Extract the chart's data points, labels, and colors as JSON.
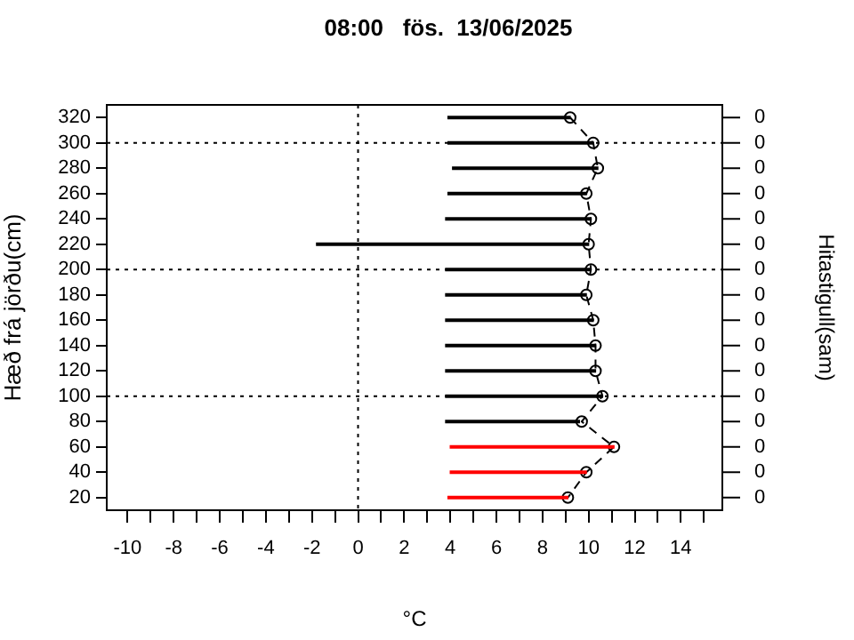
{
  "chart_data": {
    "type": "bar",
    "orientation": "horizontal",
    "title": "08:00   fös.  13/06/2025",
    "xlabel": "°C",
    "ylabel": "Hæð frá jörðu(cm)",
    "y2label": "Hitastigull(sam)",
    "categories": [
      "320",
      "300",
      "280",
      "260",
      "240",
      "220",
      "200",
      "180",
      "160",
      "140",
      "120",
      "100",
      "80",
      "60",
      "40",
      "20"
    ],
    "series": [
      {
        "base": [
          3.9,
          3.9,
          4.1,
          3.9,
          3.8,
          -1.8,
          3.8,
          3.8,
          3.8,
          3.8,
          3.8,
          3.8,
          3.8,
          4.0,
          4.0,
          3.9
        ],
        "values": [
          5.3,
          6.3,
          6.3,
          6.0,
          6.3,
          11.8,
          6.3,
          6.1,
          6.4,
          6.5,
          6.5,
          6.8,
          5.8,
          7.1,
          5.9,
          5.2
        ],
        "colors": [
          "#000000",
          "#000000",
          "#000000",
          "#000000",
          "#000000",
          "#000000",
          "#000000",
          "#000000",
          "#000000",
          "#000000",
          "#000000",
          "#000000",
          "#000000",
          "#ff0000",
          "#ff0000",
          "#ff0000"
        ]
      },
      {
        "type": "line",
        "color": "#000000",
        "marker": "circle",
        "line_style": "dashed",
        "values": [
          9.2,
          10.2,
          10.4,
          9.9,
          10.1,
          10.0,
          10.1,
          9.9,
          10.2,
          10.3,
          10.3,
          10.6,
          9.7,
          11.1,
          9.9,
          9.1
        ]
      }
    ],
    "xlim": [
      -10.9,
      15.8
    ],
    "xticks": [
      {
        "value": -10,
        "label": "-10"
      },
      {
        "value": -9,
        "label": null
      },
      {
        "value": -8,
        "label": "-8"
      },
      {
        "value": -7,
        "label": null
      },
      {
        "value": -6,
        "label": "-6"
      },
      {
        "value": -5,
        "label": null
      },
      {
        "value": -4,
        "label": "-4"
      },
      {
        "value": -3,
        "label": null
      },
      {
        "value": -2,
        "label": "-2"
      },
      {
        "value": -1,
        "label": null
      },
      0,
      {
        "value": 1,
        "label": null
      },
      2,
      {
        "value": 3,
        "label": null
      },
      4,
      {
        "value": 5,
        "label": null
      },
      6,
      {
        "value": 7,
        "label": null
      },
      8,
      {
        "value": 9,
        "label": null
      },
      10,
      {
        "value": 11,
        "label": null
      },
      12,
      {
        "value": 13,
        "label": null
      },
      14,
      {
        "value": 15,
        "label": null
      }
    ],
    "annotations": [
      "0",
      "0",
      "0",
      "0",
      "0",
      "0",
      "0",
      "0",
      "0",
      "0",
      "0",
      "0",
      "0",
      "0",
      "0",
      "0"
    ],
    "ref_lines": [
      {
        "axis": "y",
        "value": "300",
        "line_style": "dotted"
      },
      {
        "axis": "y",
        "value": "200",
        "line_style": "dotted"
      },
      {
        "axis": "y",
        "value": "100",
        "line_style": "dotted"
      },
      {
        "axis": "x",
        "value": 0,
        "line_style": "dotted"
      }
    ],
    "grid": false,
    "legend": false
  }
}
